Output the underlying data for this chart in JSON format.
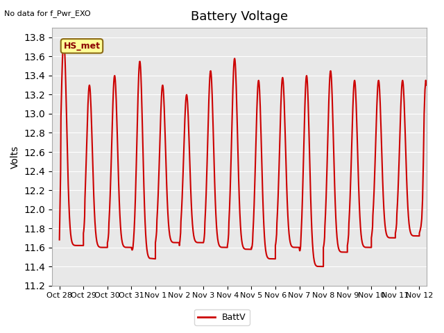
{
  "title": "Battery Voltage",
  "no_data_text": "No data for f_Pwr_EXO",
  "ylabel": "Volts",
  "ylim": [
    11.2,
    13.9
  ],
  "yticks": [
    11.2,
    11.4,
    11.6,
    11.8,
    12.0,
    12.2,
    12.4,
    12.6,
    12.8,
    13.0,
    13.2,
    13.4,
    13.6,
    13.8
  ],
  "line_color": "#cc0000",
  "line_width": 1.5,
  "bg_color": "#e8e8e8",
  "legend_label": "BattV",
  "hs_met_label": "HS_met",
  "hs_met_box_color": "#ffff99",
  "hs_met_text_color": "#8b0000",
  "hs_met_edge_color": "#8b6914",
  "x_tick_labels": [
    "Oct 28",
    "Oct 29",
    "Oct 30",
    "Oct 31",
    "Nov 1",
    "Nov 2",
    "Nov 3",
    "Nov 4",
    "Nov 5",
    "Nov 6",
    "Nov 7",
    "Nov 8",
    "Nov 9",
    "Nov 10",
    "Nov 11",
    "Nov 12"
  ],
  "x_tick_positions": [
    0,
    1,
    2,
    3,
    4,
    5,
    6,
    7,
    8,
    9,
    10,
    11,
    12,
    13,
    14,
    15
  ],
  "num_days": 15,
  "cycle_min": 11.55,
  "cycle_max": 13.65,
  "xlim_min": -0.3,
  "xlim_max": 15.3
}
